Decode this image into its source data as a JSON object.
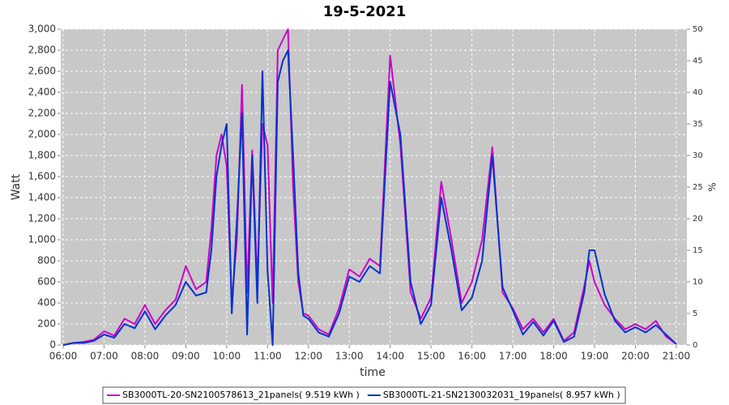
{
  "chart_data": {
    "type": "line",
    "title": "19-5-2021",
    "xlabel": "time",
    "ylabel": "Watt",
    "y2label": "%",
    "x": [
      6.0,
      6.25,
      6.5,
      6.75,
      7.0,
      7.25,
      7.5,
      7.75,
      8.0,
      8.25,
      8.5,
      8.75,
      9.0,
      9.25,
      9.5,
      9.625,
      9.75,
      9.875,
      10.0,
      10.125,
      10.25,
      10.375,
      10.5,
      10.625,
      10.75,
      10.875,
      11.0,
      11.125,
      11.25,
      11.375,
      11.5,
      11.625,
      11.75,
      11.875,
      12.0,
      12.25,
      12.5,
      12.75,
      13.0,
      13.25,
      13.5,
      13.75,
      14.0,
      14.25,
      14.5,
      14.75,
      15.0,
      15.25,
      15.5,
      15.75,
      16.0,
      16.25,
      16.5,
      16.75,
      17.0,
      17.25,
      17.5,
      17.75,
      18.0,
      18.25,
      18.5,
      18.75,
      18.875,
      19.0,
      19.25,
      19.5,
      19.75,
      20.0,
      20.25,
      20.5,
      20.75,
      21.0
    ],
    "series": [
      {
        "name": "SB3000TL-20-SN2100578613_21panels( 9.519 kWh  )",
        "color": "#cc00cc",
        "values": [
          0,
          20,
          30,
          50,
          130,
          90,
          250,
          200,
          380,
          200,
          330,
          430,
          750,
          530,
          600,
          1100,
          1800,
          2000,
          1700,
          400,
          1000,
          2470,
          500,
          1850,
          600,
          2100,
          1900,
          400,
          2800,
          2900,
          3000,
          1500,
          600,
          300,
          280,
          150,
          100,
          350,
          720,
          650,
          820,
          750,
          2750,
          1900,
          500,
          250,
          450,
          1550,
          1000,
          400,
          600,
          1000,
          1880,
          500,
          350,
          150,
          250,
          120,
          250,
          40,
          120,
          560,
          800,
          600,
          380,
          250,
          150,
          200,
          150,
          230,
          80,
          10
        ]
      },
      {
        "name": "SB3000TL-21-SN2130032031_19panels( 8.957 kWh  )",
        "color": "#0033cc",
        "values": [
          0,
          20,
          20,
          40,
          100,
          70,
          200,
          160,
          320,
          150,
          280,
          380,
          600,
          470,
          500,
          900,
          1600,
          1900,
          2100,
          300,
          1200,
          2200,
          100,
          1800,
          400,
          2600,
          700,
          0,
          2500,
          2700,
          2800,
          1800,
          700,
          280,
          250,
          120,
          80,
          300,
          650,
          600,
          750,
          680,
          2500,
          2000,
          600,
          200,
          380,
          1400,
          900,
          330,
          450,
          800,
          1800,
          550,
          330,
          100,
          220,
          90,
          230,
          30,
          80,
          500,
          900,
          900,
          480,
          230,
          120,
          170,
          120,
          190,
          100,
          10
        ]
      }
    ],
    "xlim": [
      5.94,
      21.26
    ],
    "xticks": [
      {
        "value": 6,
        "label": "06:00"
      },
      {
        "value": 7,
        "label": "07:00"
      },
      {
        "value": 8,
        "label": "08:00"
      },
      {
        "value": 9,
        "label": "09:00"
      },
      {
        "value": 10,
        "label": "10:00"
      },
      {
        "value": 11,
        "label": "11:00"
      },
      {
        "value": 12,
        "label": "12:00"
      },
      {
        "value": 13,
        "label": "13:00"
      },
      {
        "value": 14,
        "label": "14:00"
      },
      {
        "value": 15,
        "label": "15:00"
      },
      {
        "value": 16,
        "label": "16:00"
      },
      {
        "value": 17,
        "label": "17:00"
      },
      {
        "value": 18,
        "label": "18:00"
      },
      {
        "value": 19,
        "label": "19:00"
      },
      {
        "value": 20,
        "label": "20:00"
      },
      {
        "value": 21,
        "label": "21:00"
      }
    ],
    "ylim": [
      0,
      3000
    ],
    "yticks": [
      0,
      200,
      400,
      600,
      800,
      {
        "value": 1000,
        "label": "1,000"
      },
      {
        "value": 1200,
        "label": "1,200"
      },
      {
        "value": 1400,
        "label": "1,400"
      },
      {
        "value": 1600,
        "label": "1,600"
      },
      {
        "value": 1800,
        "label": "1,800"
      },
      {
        "value": 2000,
        "label": "2,000"
      },
      {
        "value": 2200,
        "label": "2,200"
      },
      {
        "value": 2400,
        "label": "2,400"
      },
      {
        "value": 2600,
        "label": "2,600"
      },
      {
        "value": 2800,
        "label": "2,800"
      },
      {
        "value": 3000,
        "label": "3,000"
      }
    ],
    "y2lim": [
      0,
      50
    ],
    "y2ticks": [
      0,
      5,
      10,
      15,
      20,
      25,
      30,
      35,
      40,
      45,
      50
    ],
    "grid": true
  }
}
